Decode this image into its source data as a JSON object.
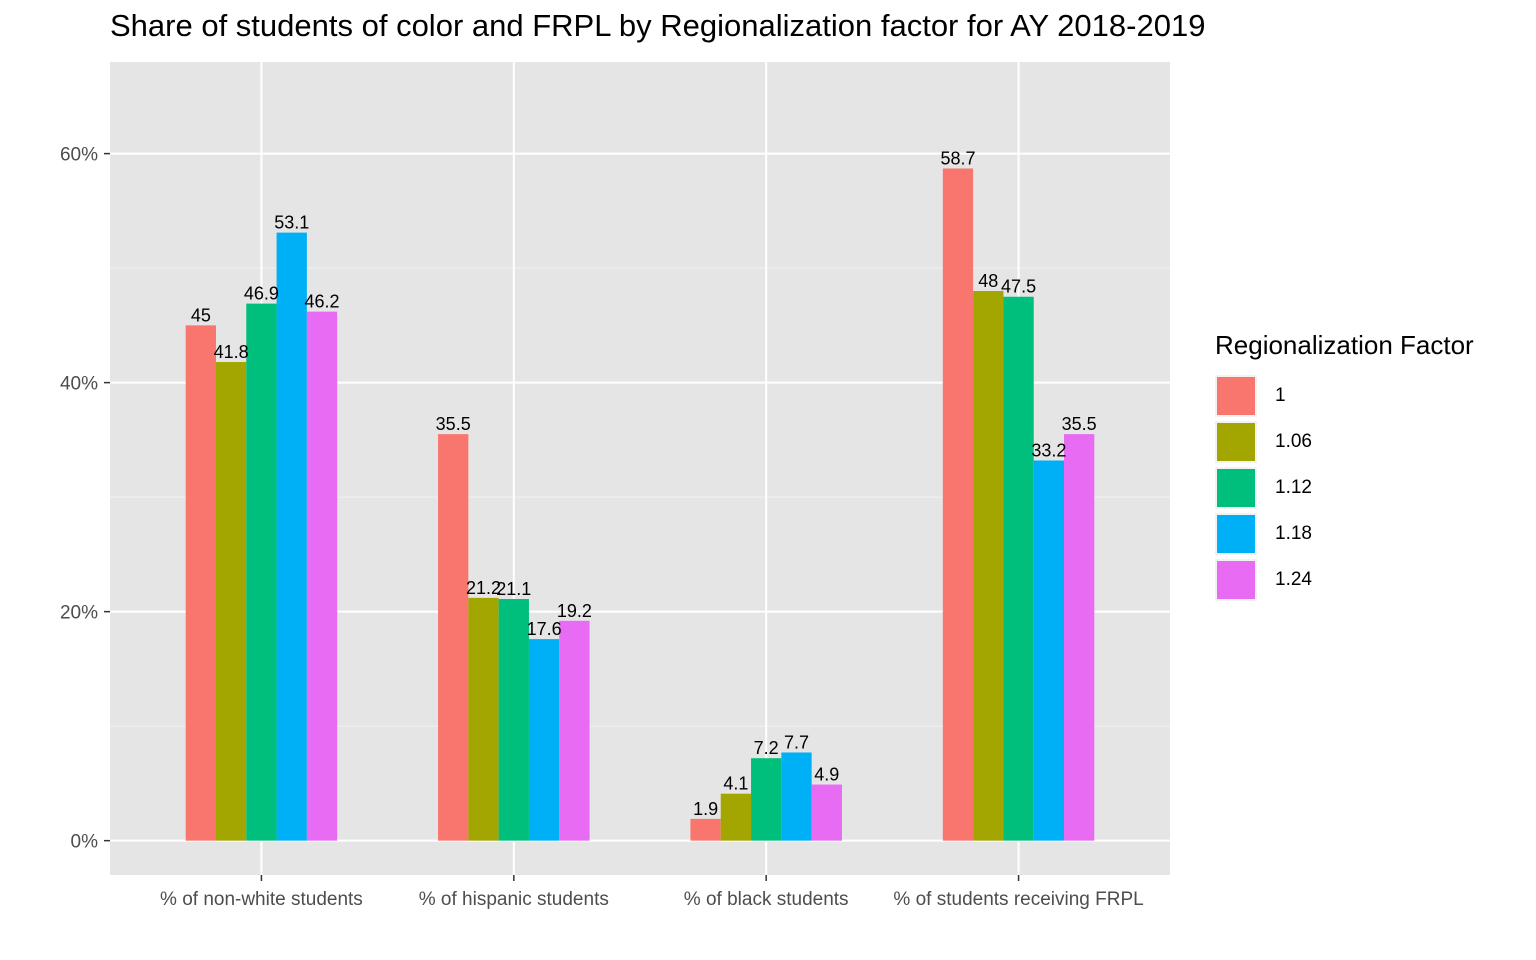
{
  "chart_data": {
    "type": "bar",
    "title": "Share of students of color and FRPL by Regionalization factor for AY 2018-2019",
    "xlabel": "",
    "ylabel": "",
    "categories": [
      "% of non-white students",
      "% of hispanic students",
      "% of black students",
      "% of students receiving FRPL"
    ],
    "series": [
      {
        "name": "1",
        "color": "#F8766D",
        "values": [
          45,
          35.5,
          1.9,
          58.7
        ],
        "labels": [
          "45",
          "35.5",
          "1.9",
          "58.7"
        ]
      },
      {
        "name": "1.06",
        "color": "#A3A500",
        "values": [
          41.8,
          21.2,
          4.1,
          48
        ],
        "labels": [
          "41.8",
          "21.2",
          "4.1",
          "48"
        ]
      },
      {
        "name": "1.12",
        "color": "#00BF7D",
        "values": [
          46.9,
          21.1,
          7.2,
          47.5
        ],
        "labels": [
          "46.9",
          "21.1",
          "7.2",
          "47.5"
        ]
      },
      {
        "name": "1.18",
        "color": "#00B0F6",
        "values": [
          53.1,
          17.6,
          7.7,
          33.2
        ],
        "labels": [
          "53.1",
          "17.6",
          "7.7",
          "33.2"
        ]
      },
      {
        "name": "1.24",
        "color": "#E76BF3",
        "values": [
          46.2,
          19.2,
          4.9,
          35.5
        ],
        "labels": [
          "46.2",
          "19.2",
          "4.9",
          "35.5"
        ]
      }
    ],
    "yticks": [
      0,
      20,
      40,
      60
    ],
    "ytick_labels": [
      "0%",
      "20%",
      "40%",
      "60%"
    ],
    "ylim": [
      -3,
      68
    ],
    "grid": true,
    "panel_background": "#e5e5e5",
    "legend": {
      "title": "Regionalization Factor",
      "position": "right"
    }
  }
}
